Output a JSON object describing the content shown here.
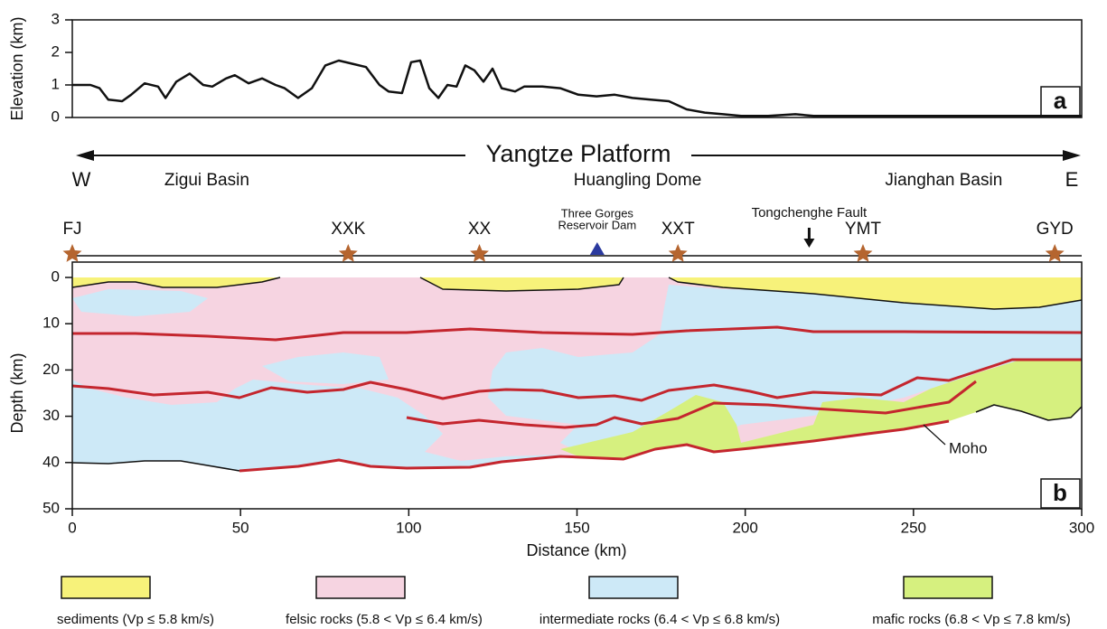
{
  "chart_data": [
    {
      "type": "line",
      "panel_label": "a",
      "y_label": "Elevation (km)",
      "color": "#111111",
      "x": [
        0,
        5.4,
        8.1,
        10.7,
        14.8,
        17.5,
        21.5,
        25.5,
        27.7,
        30.9,
        34.9,
        38.9,
        41.6,
        45.7,
        48.3,
        52.4,
        56.4,
        60.4,
        63.1,
        67.1,
        71.2,
        75.2,
        79.2,
        83.3,
        87.3,
        91.3,
        94.0,
        98.0,
        100.7,
        103.4,
        106.1,
        108.8,
        111.5,
        114.2,
        116.8,
        119.5,
        122.2,
        124.9,
        127.6,
        131.6,
        134.3,
        139.7,
        145.0,
        150.4,
        155.8,
        161.2,
        166.5,
        171.9,
        177.3,
        182.6,
        188.0,
        193.4,
        198.8,
        206.8,
        214.9,
        220.3,
        233.7,
        247.1,
        274.0,
        300
      ],
      "values": [
        1.0,
        1.0,
        0.9,
        0.55,
        0.5,
        0.7,
        1.05,
        0.95,
        0.6,
        1.1,
        1.35,
        1.0,
        0.95,
        1.2,
        1.3,
        1.05,
        1.2,
        1.0,
        0.9,
        0.6,
        0.9,
        1.6,
        1.75,
        1.65,
        1.55,
        1.0,
        0.8,
        0.75,
        1.7,
        1.75,
        0.9,
        0.6,
        1.0,
        0.95,
        1.6,
        1.45,
        1.1,
        1.5,
        0.9,
        0.8,
        0.95,
        0.95,
        0.9,
        0.7,
        0.65,
        0.7,
        0.6,
        0.55,
        0.5,
        0.25,
        0.15,
        0.1,
        0.05,
        0.05,
        0.1,
        0.05,
        0.05,
        0.05,
        0.05,
        0.05
      ],
      "xlim": [
        0,
        300
      ],
      "ylim": [
        0,
        3
      ],
      "yticks": [
        0,
        1,
        2,
        3
      ]
    },
    {
      "type": "section",
      "panel_label": "b",
      "x_label": "Distance (km)",
      "y_label": "Depth (km)",
      "xlim": [
        0,
        300
      ],
      "ylim": [
        0,
        50
      ],
      "xticks": [
        0,
        50,
        100,
        150,
        200,
        250,
        300
      ],
      "yticks": [
        0,
        10,
        20,
        30,
        40,
        50
      ],
      "platform": "Yangtze Platform",
      "west": "W",
      "east": "E",
      "regions": [
        {
          "name": "Zigui Basin",
          "x": 40
        },
        {
          "name": "Huangling Dome",
          "x": 168
        },
        {
          "name": "Jianghan Basin",
          "x": 259
        }
      ],
      "stations": [
        {
          "name": "FJ",
          "x": 0
        },
        {
          "name": "XXK",
          "x": 82
        },
        {
          "name": "XX",
          "x": 121
        },
        {
          "name": "XXT",
          "x": 180
        },
        {
          "name": "YMT",
          "x": 235
        },
        {
          "name": "GYD",
          "x": 292
        }
      ],
      "dam": {
        "label_1": "Three Gorges",
        "label_2": "Reservoir Dam",
        "x": 156
      },
      "fault": {
        "name": "Tongchenghe Fault",
        "x": 219
      },
      "moho_label": "Moho",
      "legend": [
        {
          "name": "sediments (Vp ≤ 5.8 km/s)",
          "color": "#f7f27a"
        },
        {
          "name": "felsic rocks (5.8 < Vp ≤ 6.4 km/s)",
          "color": "#f6d4e1"
        },
        {
          "name": "intermediate rocks (6.4 < Vp ≤ 6.8 km/s)",
          "color": "#cde9f7"
        },
        {
          "name": "mafic rocks (6.8 < Vp ≤ 7.8 km/s)",
          "color": "#d6f07f"
        }
      ]
    }
  ]
}
